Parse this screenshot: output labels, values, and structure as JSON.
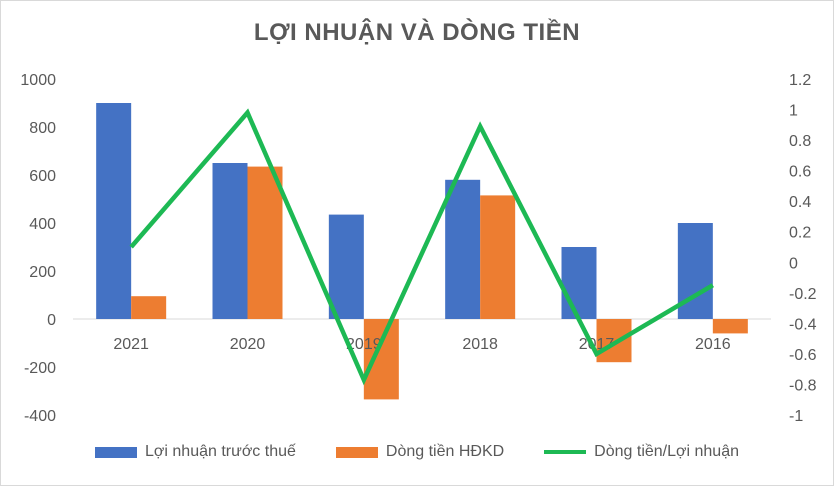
{
  "chart_data": {
    "type": "bar",
    "title": "LỢI NHUẬN VÀ DÒNG TIỀN",
    "categories": [
      "2021",
      "2020",
      "2019",
      "2018",
      "2017",
      "2016"
    ],
    "series": [
      {
        "name": "Lợi nhuận trước thuế",
        "type": "bar",
        "axis": "left",
        "color": "#4472C4",
        "values": [
          900,
          650,
          435,
          580,
          300,
          400
        ]
      },
      {
        "name": "Dòng tiền HĐKD",
        "type": "bar",
        "axis": "left",
        "color": "#ED7D31",
        "values": [
          95,
          635,
          -335,
          515,
          -180,
          -60
        ]
      },
      {
        "name": "Dòng tiền/Lợi nhuận",
        "type": "line",
        "axis": "right",
        "color": "#1DB954",
        "values": [
          0.1,
          0.98,
          -0.77,
          0.89,
          -0.6,
          -0.15
        ]
      }
    ],
    "y_left": {
      "min": -400,
      "max": 1000,
      "ticks": [
        "1000",
        "800",
        "600",
        "400",
        "200",
        "0",
        "-200",
        "-400"
      ]
    },
    "y_right": {
      "min": -1,
      "max": 1.2,
      "ticks": [
        "1.2",
        "1",
        "0.8",
        "0.6",
        "0.4",
        "0.2",
        "0",
        "-0.2",
        "-0.4",
        "-0.6",
        "-0.8",
        "-1"
      ]
    },
    "legend": "bottom",
    "grid": false
  }
}
